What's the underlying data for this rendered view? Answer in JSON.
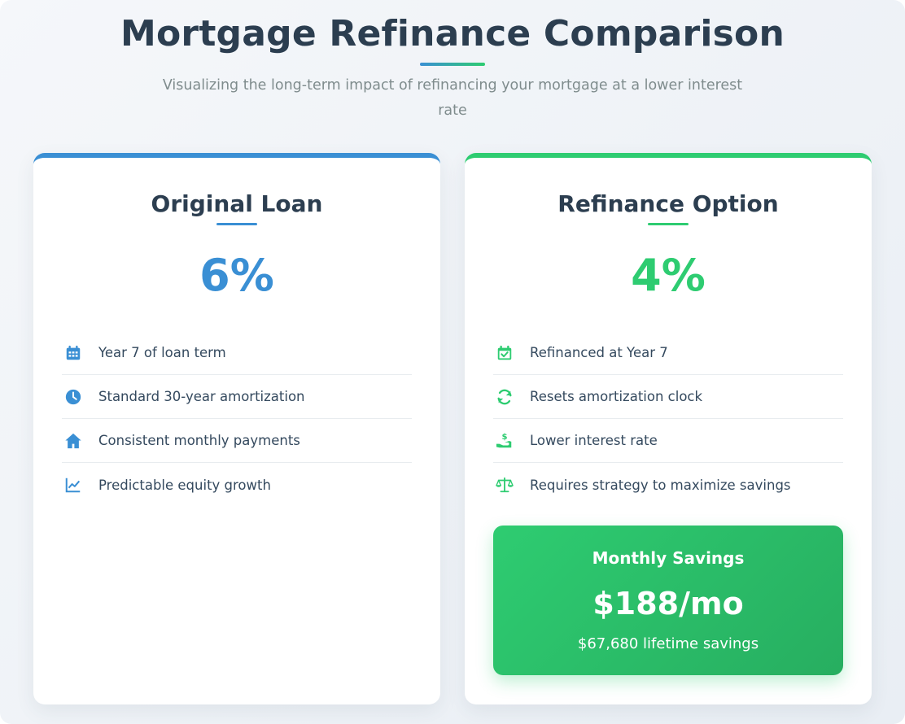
{
  "header": {
    "title": "Mortgage Refinance Comparison",
    "subtitle": "Visualizing the long-term impact of refinancing your mortgage at a lower interest rate"
  },
  "colors": {
    "original_accent": "#3a8fd4",
    "refinance_accent": "#2ecc71",
    "heading": "#2c3e50"
  },
  "original": {
    "title": "Original Loan",
    "rate": "6%",
    "features": [
      {
        "icon": "calendar-icon",
        "label": "Year 7 of loan term"
      },
      {
        "icon": "clock-icon",
        "label": "Standard 30-year amortization"
      },
      {
        "icon": "home-icon",
        "label": "Consistent monthly payments"
      },
      {
        "icon": "line-chart-icon",
        "label": "Predictable equity growth"
      }
    ]
  },
  "refinance": {
    "title": "Refinance Option",
    "rate": "4%",
    "features": [
      {
        "icon": "calendar-check-icon",
        "label": "Refinanced at Year 7"
      },
      {
        "icon": "refresh-icon",
        "label": "Resets amortization clock"
      },
      {
        "icon": "hand-dollar-icon",
        "label": "Lower interest rate"
      },
      {
        "icon": "balance-scale-icon",
        "label": "Requires strategy to maximize savings"
      }
    ],
    "savings": {
      "title": "Monthly Savings",
      "amount": "$188/mo",
      "lifetime": "$67,680 lifetime savings"
    }
  }
}
